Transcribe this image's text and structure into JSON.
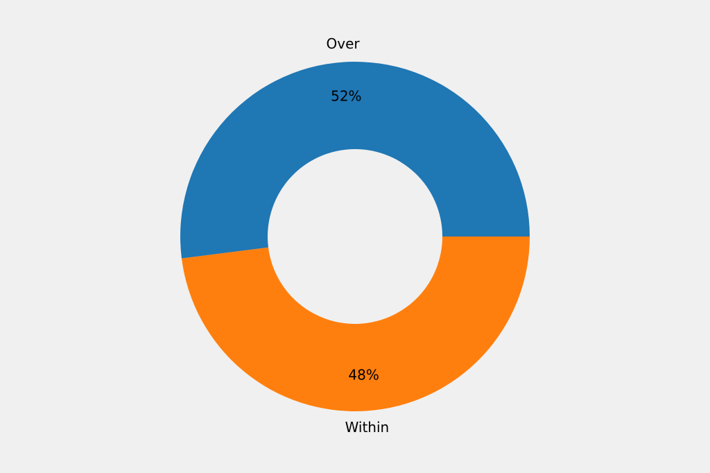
{
  "chart_data": {
    "type": "pie",
    "categories": [
      "Over",
      "Within"
    ],
    "values": [
      52,
      48
    ],
    "value_labels": [
      "52%",
      "48%"
    ],
    "colors": [
      "#1f77b4",
      "#ff7f0e"
    ],
    "start_angle": 0,
    "direction": "counterclockwise",
    "donut": true
  }
}
